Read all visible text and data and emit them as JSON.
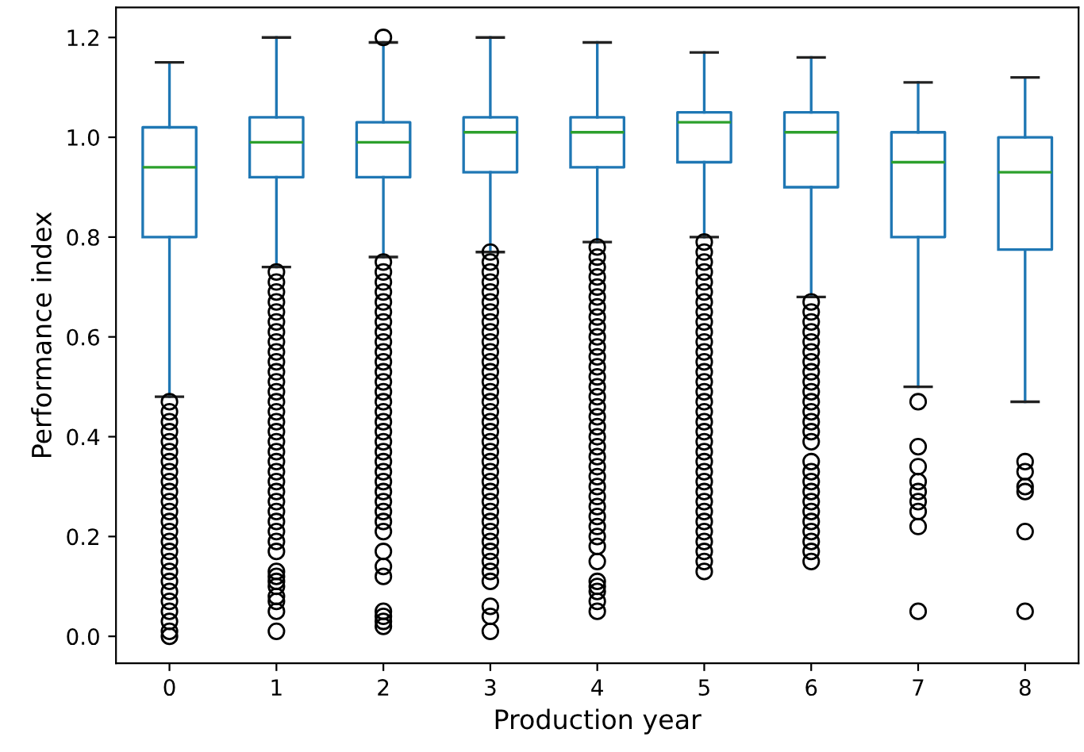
{
  "chart_data": {
    "type": "box",
    "xlabel": "Production year",
    "ylabel": "Performance index",
    "categories": [
      "0",
      "1",
      "2",
      "3",
      "4",
      "5",
      "6",
      "7",
      "8"
    ],
    "ylim": [
      -0.054,
      1.26
    ],
    "yticks": [
      {
        "value": 0,
        "label": "0.0"
      },
      {
        "value": 0.2,
        "label": "0.2"
      },
      {
        "value": 0.4,
        "label": "0.4"
      },
      {
        "value": 0.6,
        "label": "0.6"
      },
      {
        "value": 0.8,
        "label": "0.8"
      },
      {
        "value": 1.0,
        "label": "1.0"
      },
      {
        "value": 1.2,
        "label": "1.2"
      }
    ],
    "grid": false,
    "marker": "circle",
    "series": [
      {
        "color": "#1f77b4",
        "boxes": [
          {
            "low": 0.48,
            "q1": 0.8,
            "median": 0.94,
            "q3": 1.02,
            "high": 1.15,
            "outliers": [
              0.47,
              0.45,
              0.43,
              0.41,
              0.39,
              0.37,
              0.35,
              0.33,
              0.31,
              0.29,
              0.27,
              0.25,
              0.23,
              0.21,
              0.19,
              0.17,
              0.15,
              0.13,
              0.11,
              0.09,
              0.07,
              0.05,
              0.03,
              0.01,
              0.0
            ]
          },
          {
            "low": 0.74,
            "q1": 0.92,
            "median": 0.99,
            "q3": 1.04,
            "high": 1.2,
            "outliers": [
              0.73,
              0.71,
              0.69,
              0.67,
              0.65,
              0.63,
              0.61,
              0.59,
              0.57,
              0.55,
              0.53,
              0.51,
              0.49,
              0.47,
              0.45,
              0.43,
              0.41,
              0.39,
              0.37,
              0.35,
              0.33,
              0.31,
              0.29,
              0.27,
              0.25,
              0.23,
              0.21,
              0.19,
              0.17,
              0.13,
              0.12,
              0.11,
              0.1,
              0.08,
              0.07,
              0.05,
              0.01
            ]
          },
          {
            "low": 0.76,
            "q1": 0.92,
            "median": 0.99,
            "q3": 1.03,
            "high": 1.19,
            "outliers": [
              1.2,
              0.75,
              0.73,
              0.71,
              0.69,
              0.67,
              0.65,
              0.63,
              0.61,
              0.59,
              0.57,
              0.55,
              0.53,
              0.51,
              0.49,
              0.47,
              0.45,
              0.43,
              0.41,
              0.39,
              0.37,
              0.35,
              0.33,
              0.31,
              0.29,
              0.27,
              0.25,
              0.23,
              0.21,
              0.17,
              0.14,
              0.12,
              0.05,
              0.04,
              0.03,
              0.02
            ]
          },
          {
            "low": 0.77,
            "q1": 0.93,
            "median": 1.01,
            "q3": 1.04,
            "high": 1.2,
            "outliers": [
              0.77,
              0.75,
              0.73,
              0.71,
              0.69,
              0.67,
              0.65,
              0.63,
              0.61,
              0.59,
              0.57,
              0.55,
              0.53,
              0.51,
              0.49,
              0.47,
              0.45,
              0.43,
              0.41,
              0.39,
              0.37,
              0.35,
              0.33,
              0.31,
              0.29,
              0.27,
              0.25,
              0.23,
              0.21,
              0.19,
              0.17,
              0.15,
              0.13,
              0.11,
              0.06,
              0.04,
              0.01
            ]
          },
          {
            "low": 0.79,
            "q1": 0.94,
            "median": 1.01,
            "q3": 1.04,
            "high": 1.19,
            "outliers": [
              0.78,
              0.76,
              0.74,
              0.72,
              0.7,
              0.68,
              0.66,
              0.64,
              0.62,
              0.6,
              0.58,
              0.56,
              0.54,
              0.52,
              0.5,
              0.48,
              0.46,
              0.44,
              0.42,
              0.4,
              0.38,
              0.36,
              0.34,
              0.32,
              0.3,
              0.28,
              0.26,
              0.24,
              0.22,
              0.2,
              0.18,
              0.15,
              0.11,
              0.1,
              0.09,
              0.07,
              0.05
            ]
          },
          {
            "low": 0.8,
            "q1": 0.95,
            "median": 1.03,
            "q3": 1.05,
            "high": 1.17,
            "outliers": [
              0.79,
              0.77,
              0.75,
              0.73,
              0.71,
              0.69,
              0.67,
              0.65,
              0.63,
              0.61,
              0.59,
              0.57,
              0.55,
              0.53,
              0.51,
              0.49,
              0.47,
              0.45,
              0.43,
              0.41,
              0.39,
              0.37,
              0.35,
              0.33,
              0.31,
              0.29,
              0.27,
              0.25,
              0.23,
              0.21,
              0.19,
              0.17,
              0.15,
              0.13
            ]
          },
          {
            "low": 0.68,
            "q1": 0.9,
            "median": 1.01,
            "q3": 1.05,
            "high": 1.16,
            "outliers": [
              0.67,
              0.65,
              0.63,
              0.61,
              0.59,
              0.57,
              0.55,
              0.53,
              0.51,
              0.49,
              0.47,
              0.45,
              0.43,
              0.41,
              0.39,
              0.35,
              0.33,
              0.31,
              0.29,
              0.27,
              0.25,
              0.23,
              0.21,
              0.19,
              0.17,
              0.15
            ]
          },
          {
            "low": 0.5,
            "q1": 0.8,
            "median": 0.95,
            "q3": 1.01,
            "high": 1.11,
            "outliers": [
              0.47,
              0.38,
              0.34,
              0.31,
              0.29,
              0.27,
              0.25,
              0.22,
              0.05
            ]
          },
          {
            "low": 0.47,
            "q1": 0.775,
            "median": 0.93,
            "q3": 1.0,
            "high": 1.12,
            "outliers": [
              0.35,
              0.33,
              0.3,
              0.29,
              0.21,
              0.05
            ]
          }
        ]
      }
    ]
  }
}
